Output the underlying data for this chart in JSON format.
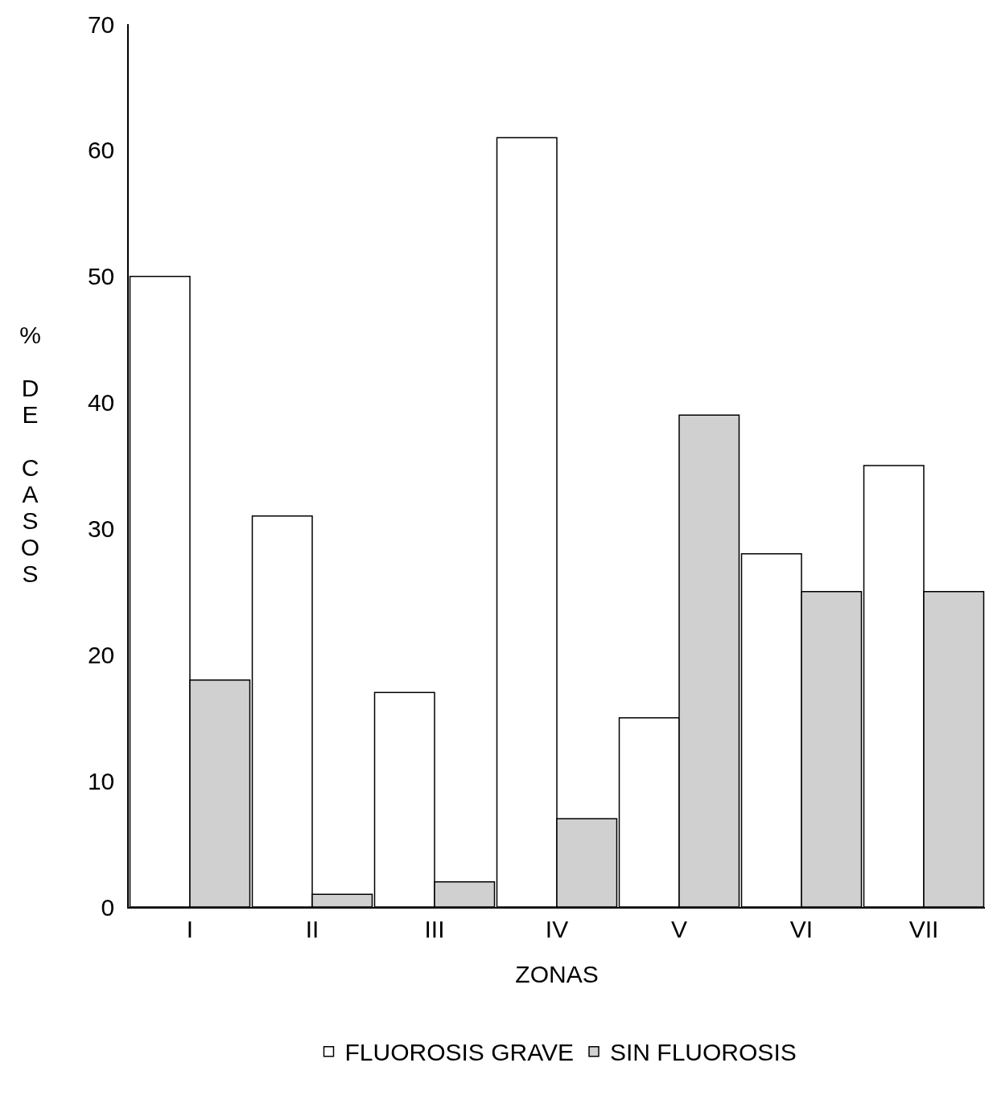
{
  "chart_data": {
    "type": "bar",
    "xlabel": "ZONAS",
    "ylabel": "% DE CASOS",
    "categories": [
      "I",
      "II",
      "III",
      "IV",
      "V",
      "VI",
      "VII"
    ],
    "series": [
      {
        "name": "FLUOROSIS GRAVE",
        "color": "#ffffff",
        "values": [
          50,
          31,
          17,
          61,
          15,
          28,
          35
        ]
      },
      {
        "name": "SIN FLUOROSIS",
        "color": "#d0d0d0",
        "values": [
          18,
          1,
          2,
          7,
          39,
          25,
          25
        ]
      }
    ],
    "ylim": [
      0,
      70
    ],
    "yticks": [
      0,
      10,
      20,
      30,
      40,
      50,
      60,
      70
    ],
    "grid": false,
    "legend": "bottom"
  }
}
